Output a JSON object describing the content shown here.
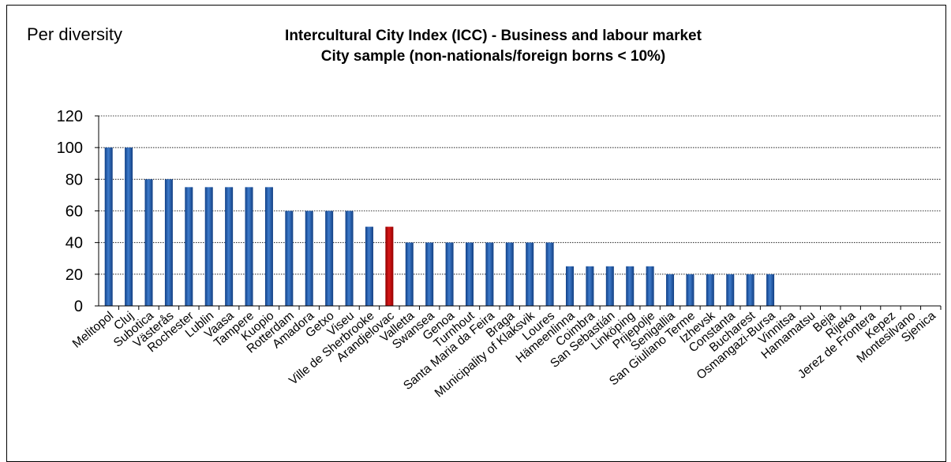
{
  "corner_label": "Per diversity",
  "title_line1": "Intercultural City Index (ICC) - Business and labour market",
  "title_line2": "City sample (non-nationals/foreign borns < 10%)",
  "colors": {
    "bar": "#1F5BA8",
    "highlight": "#C00000",
    "grid": "#000000"
  },
  "chart_data": {
    "type": "bar",
    "title": "Intercultural City Index (ICC) - Business and labour market",
    "subtitle": "City sample (non-nationals/foreign borns < 10%)",
    "categories": [
      "Melitopol",
      "Cluj",
      "Subotica",
      "Västerås",
      "Rochester",
      "Lublin",
      "Vaasa",
      "Tampere",
      "Kuopio",
      "Rotterdam",
      "Amadora",
      "Getxo",
      "Viseu",
      "Ville de Sherbrooke",
      "Arandjelovac",
      "Valletta",
      "Swansea",
      "Genoa",
      "Turnhout",
      "Santa Maria da Feira",
      "Braga",
      "Municipality of Klaksvik",
      "Loures",
      "Hämeenlinna",
      "Coimbra",
      "San Sebastián",
      "Linköping",
      "Prijepolje",
      "Senigallia",
      "San Giuliano Terme",
      "Izhevsk",
      "Constanta",
      "Bucharest",
      "Osmangazi-Bursa",
      "Vinnitsa",
      "Hamamatsu",
      "Beja",
      "Rijeka",
      "Jerez de Frontera",
      "Kepez",
      "Montesilvano",
      "Sjenica"
    ],
    "values": [
      100,
      100,
      80,
      80,
      75,
      75,
      75,
      75,
      75,
      60,
      60,
      60,
      60,
      50,
      50,
      40,
      40,
      40,
      40,
      40,
      40,
      40,
      40,
      25,
      25,
      25,
      25,
      25,
      20,
      20,
      20,
      20,
      20,
      20,
      0,
      0,
      0,
      0,
      0,
      0,
      0,
      0
    ],
    "highlight_index": 14,
    "ylim": [
      0,
      120
    ],
    "yticks": [
      0,
      20,
      40,
      60,
      80,
      100,
      120
    ],
    "grid": true,
    "legend": "none"
  }
}
